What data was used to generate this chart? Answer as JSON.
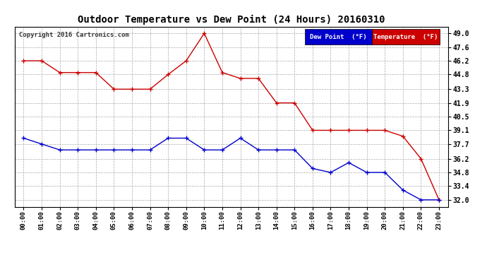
{
  "title": "Outdoor Temperature vs Dew Point (24 Hours) 20160310",
  "copyright": "Copyright 2016 Cartronics.com",
  "x_labels": [
    "00:00",
    "01:00",
    "02:00",
    "03:00",
    "04:00",
    "05:00",
    "06:00",
    "07:00",
    "08:00",
    "09:00",
    "10:00",
    "11:00",
    "12:00",
    "13:00",
    "14:00",
    "15:00",
    "16:00",
    "17:00",
    "18:00",
    "19:00",
    "20:00",
    "21:00",
    "22:00",
    "23:00"
  ],
  "temperature": [
    46.2,
    46.2,
    45.0,
    45.0,
    45.0,
    43.3,
    43.3,
    43.3,
    44.8,
    46.2,
    49.0,
    45.0,
    44.4,
    44.4,
    41.9,
    41.9,
    39.1,
    39.1,
    39.1,
    39.1,
    39.1,
    38.5,
    36.2,
    32.0
  ],
  "dew_point": [
    38.3,
    37.7,
    37.1,
    37.1,
    37.1,
    37.1,
    37.1,
    37.1,
    38.3,
    38.3,
    37.1,
    37.1,
    38.3,
    37.1,
    37.1,
    37.1,
    35.2,
    34.8,
    35.8,
    34.8,
    34.8,
    33.0,
    32.0,
    32.0
  ],
  "ylim_min": 31.3,
  "ylim_max": 49.7,
  "y_ticks": [
    32.0,
    33.4,
    34.8,
    36.2,
    37.7,
    39.1,
    40.5,
    41.9,
    43.3,
    44.8,
    46.2,
    47.6,
    49.0
  ],
  "temp_color": "#cc0000",
  "dew_color": "#0000cc",
  "bg_color": "#ffffff",
  "grid_color": "#aaaaaa",
  "legend_dew_bg": "#0000cc",
  "legend_temp_bg": "#cc0000",
  "legend_text_color": "#ffffff"
}
